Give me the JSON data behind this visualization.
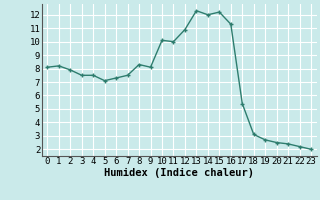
{
  "x": [
    0,
    1,
    2,
    3,
    4,
    5,
    6,
    7,
    8,
    9,
    10,
    11,
    12,
    13,
    14,
    15,
    16,
    17,
    18,
    19,
    20,
    21,
    22,
    23
  ],
  "y": [
    8.1,
    8.2,
    7.9,
    7.5,
    7.5,
    7.1,
    7.3,
    7.5,
    8.3,
    8.1,
    10.1,
    10.0,
    10.9,
    12.3,
    12.0,
    12.2,
    11.3,
    5.4,
    3.1,
    2.7,
    2.5,
    2.4,
    2.2,
    2.0
  ],
  "line_color": "#2e7d6e",
  "marker": "+",
  "marker_size": 3,
  "marker_lw": 1.0,
  "line_width": 1.0,
  "bg_color": "#caeaea",
  "grid_color": "#ffffff",
  "xlabel": "Humidex (Indice chaleur)",
  "ylabel_ticks": [
    2,
    3,
    4,
    5,
    6,
    7,
    8,
    9,
    10,
    11,
    12
  ],
  "xtick_labels": [
    "0",
    "1",
    "2",
    "3",
    "4",
    "5",
    "6",
    "7",
    "8",
    "9",
    "10",
    "11",
    "12",
    "13",
    "14",
    "15",
    "16",
    "17",
    "18",
    "19",
    "20",
    "21",
    "22",
    "23"
  ],
  "ylim": [
    1.5,
    12.8
  ],
  "xlim": [
    -0.5,
    23.5
  ],
  "xlabel_fontsize": 7.5,
  "tick_fontsize": 6.5
}
